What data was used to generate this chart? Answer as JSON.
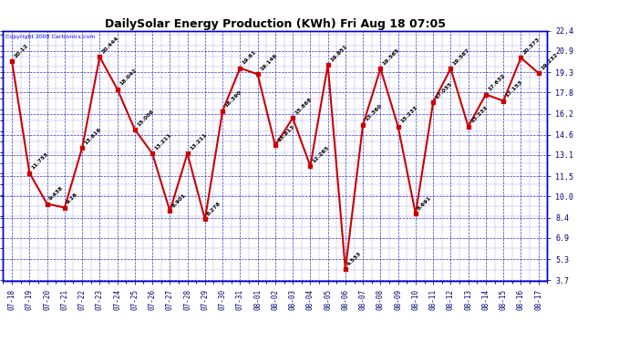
{
  "title": "DailySolar Energy Production (KWh) Fri Aug 18 07:05",
  "copyright": "Copyright 2008 Cartronics.com",
  "x_labels": [
    "07-18",
    "07-19",
    "07-20",
    "07-21",
    "07-22",
    "07-23",
    "07-24",
    "07-25",
    "07-26",
    "07-27",
    "07-28",
    "07-29",
    "07-30",
    "07-31",
    "08-01",
    "08-02",
    "08-03",
    "08-04",
    "08-05",
    "08-06",
    "08-07",
    "08-08",
    "08-09",
    "08-10",
    "08-11",
    "08-12",
    "08-13",
    "08-14",
    "08-15",
    "08-16",
    "08-17"
  ],
  "y_values": [
    20.12,
    11.753,
    9.438,
    9.16,
    13.616,
    20.444,
    18.042,
    15.006,
    13.211,
    8.901,
    13.211,
    8.278,
    16.39,
    19.61,
    19.146,
    13.813,
    15.868,
    12.265,
    19.851,
    4.533,
    15.36,
    19.565,
    15.233,
    8.691,
    17.035,
    19.567,
    15.233,
    17.632,
    17.153,
    20.373,
    19.232
  ],
  "point_labels": [
    "20.12",
    "11.753",
    "9.438",
    "9.16",
    "13.616",
    "20.444",
    "18.042",
    "15.006",
    "13.211",
    "8.901",
    "13.211",
    "8.278",
    "16.390",
    "19.61",
    "19.146",
    "13.813",
    "15.868",
    "12.265",
    "19.851",
    "4.533",
    "15.360",
    "19.565",
    "15.233",
    "8.691",
    "17.035",
    "19.567",
    "15.233",
    "17.632",
    "17.153",
    "20.373",
    "19.232"
  ],
  "y_ticks": [
    3.7,
    5.3,
    6.9,
    8.4,
    10.0,
    11.5,
    13.1,
    14.6,
    16.2,
    17.8,
    19.3,
    20.9,
    22.4
  ],
  "line_color": "#cc0000",
  "marker_color": "#cc0000",
  "bg_color": "white",
  "plot_bg_color": "#ffffff",
  "grid_color": "#0000cc",
  "label_color": "#000077",
  "title_color": "black",
  "ylim": [
    3.7,
    22.4
  ],
  "marker_size": 3,
  "figsize": [
    6.9,
    3.75
  ],
  "dpi": 100
}
